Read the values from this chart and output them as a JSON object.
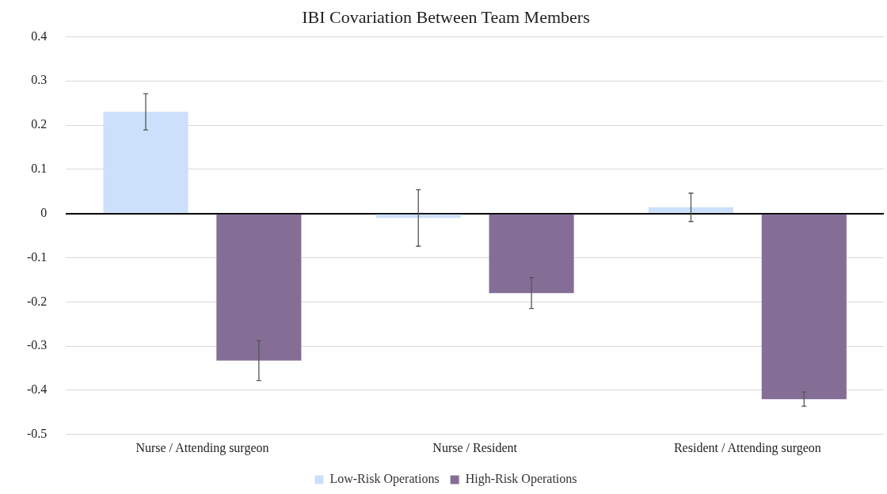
{
  "chart_data": {
    "type": "bar",
    "title": "IBI Covariation Between Team Members",
    "categories": [
      "Nurse / Attending surgeon",
      "Nurse / Resident",
      "Resident / Attending surgeon"
    ],
    "series": [
      {
        "name": "Low-Risk Operations",
        "color": "#cce0fb",
        "values": [
          0.23,
          -0.01,
          0.014
        ],
        "errors": [
          0.041,
          0.064,
          0.032
        ]
      },
      {
        "name": "High-Risk Operations",
        "color": "#846e96",
        "values": [
          -0.333,
          -0.18,
          -0.42
        ],
        "errors": [
          0.045,
          0.035,
          0.016
        ]
      }
    ],
    "ylim": [
      -0.5,
      0.4
    ],
    "yticks": [
      -0.5,
      -0.4,
      -0.3,
      -0.2,
      -0.1,
      0,
      0.1,
      0.2,
      0.3,
      0.4
    ],
    "grid": "y",
    "legend": "bottom"
  }
}
